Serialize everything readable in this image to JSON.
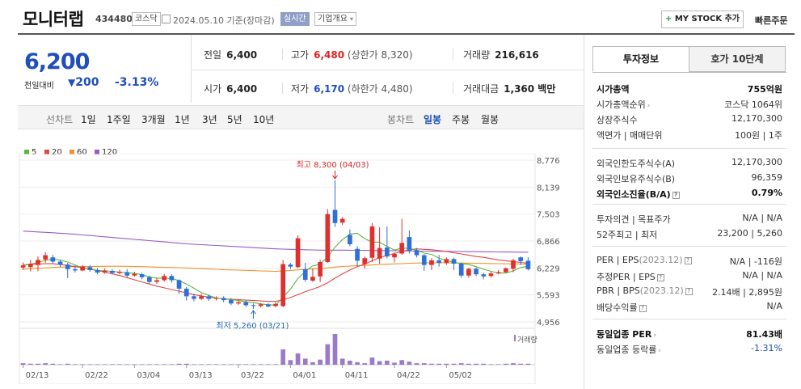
{
  "header": {
    "name": "모니터랩",
    "code": "434480",
    "market_badge": "코스닥",
    "date": "2024.05.10 기준(장마감)",
    "live_badge": "실시간",
    "overview_btn": "기업개요",
    "mystock_btn": "MY STOCK 추가",
    "quick_order": "빠른주문"
  },
  "price": {
    "current": "6,200",
    "change_label": "전일대비",
    "change": "200",
    "change_pct": "-3.13%"
  },
  "quotes": {
    "prev_label": "전일",
    "prev": "6,400",
    "high_label": "고가",
    "high": "6,480",
    "high_sub": "(상한가 8,320)",
    "volume_label": "거래량",
    "volume": "216,616",
    "open_label": "시가",
    "open": "6,400",
    "low_label": "저가",
    "low": "6,170",
    "low_sub": "(하한가 4,480)",
    "amount_label": "거래대금",
    "amount": "1,360 백만"
  },
  "toolbar": {
    "line_label": "선차트",
    "periods": [
      "1일",
      "1주일",
      "3개월",
      "1년",
      "3년",
      "5년",
      "10년"
    ],
    "candle_label": "봉차트",
    "candles": [
      "일봉",
      "주봉",
      "월봉"
    ]
  },
  "chart_data": {
    "type": "candlestick",
    "x_ticks": [
      "02/13",
      "02/22",
      "03/04",
      "03/13",
      "03/22",
      "04/01",
      "04/11",
      "04/22",
      "05/02"
    ],
    "y_ticks": [
      8776,
      8139,
      7503,
      6866,
      6229,
      5593,
      4956
    ],
    "ylim": [
      4956,
      8776
    ],
    "legend": [
      {
        "name": "5",
        "color": "#5cb83a"
      },
      {
        "name": "20",
        "color": "#e04848"
      },
      {
        "name": "60",
        "color": "#f0922b"
      },
      {
        "name": "120",
        "color": "#9b59c6"
      }
    ],
    "volume_label": "거래량",
    "annotations": {
      "high": "최고 8,300 (04/03)",
      "low": "최저 5,260 (03/21)"
    },
    "candles": [
      {
        "o": 6240,
        "c": 6290,
        "h": 6360,
        "l": 6180
      },
      {
        "o": 6250,
        "c": 6330,
        "h": 6420,
        "l": 6150
      },
      {
        "o": 6300,
        "c": 6420,
        "h": 6500,
        "l": 6150
      },
      {
        "o": 6430,
        "c": 6530,
        "h": 6600,
        "l": 6350
      },
      {
        "o": 6480,
        "c": 6380,
        "h": 6540,
        "l": 6340
      },
      {
        "o": 6380,
        "c": 6310,
        "h": 6420,
        "l": 6250
      },
      {
        "o": 6310,
        "c": 6200,
        "h": 6350,
        "l": 5990
      },
      {
        "o": 6200,
        "c": 6170,
        "h": 6290,
        "l": 6120
      },
      {
        "o": 6170,
        "c": 6260,
        "h": 6300,
        "l": 6150
      },
      {
        "o": 6250,
        "c": 6180,
        "h": 6300,
        "l": 6140
      },
      {
        "o": 6180,
        "c": 6120,
        "h": 6230,
        "l": 6080
      },
      {
        "o": 6120,
        "c": 6170,
        "h": 6220,
        "l": 6090
      },
      {
        "o": 6160,
        "c": 6110,
        "h": 6200,
        "l": 6080
      },
      {
        "o": 6110,
        "c": 6140,
        "h": 6190,
        "l": 6080
      },
      {
        "o": 6130,
        "c": 6050,
        "h": 6200,
        "l": 6000
      },
      {
        "o": 6050,
        "c": 6090,
        "h": 6140,
        "l": 6020
      },
      {
        "o": 6080,
        "c": 6010,
        "h": 6120,
        "l": 5960
      },
      {
        "o": 6010,
        "c": 5900,
        "h": 6050,
        "l": 5860
      },
      {
        "o": 5900,
        "c": 5940,
        "h": 6000,
        "l": 5850
      },
      {
        "o": 5940,
        "c": 6040,
        "h": 6090,
        "l": 5910
      },
      {
        "o": 6040,
        "c": 5940,
        "h": 6080,
        "l": 5880
      },
      {
        "o": 5940,
        "c": 5740,
        "h": 5960,
        "l": 5620
      },
      {
        "o": 5740,
        "c": 5560,
        "h": 5780,
        "l": 5460
      },
      {
        "o": 5560,
        "c": 5500,
        "h": 5620,
        "l": 5440
      },
      {
        "o": 5500,
        "c": 5560,
        "h": 5620,
        "l": 5470
      },
      {
        "o": 5560,
        "c": 5500,
        "h": 5600,
        "l": 5450
      },
      {
        "o": 5500,
        "c": 5520,
        "h": 5560,
        "l": 5460
      },
      {
        "o": 5520,
        "c": 5470,
        "h": 5560,
        "l": 5420
      },
      {
        "o": 5470,
        "c": 5390,
        "h": 5520,
        "l": 5350
      },
      {
        "o": 5390,
        "c": 5420,
        "h": 5460,
        "l": 5360
      },
      {
        "o": 5420,
        "c": 5350,
        "h": 5460,
        "l": 5310
      },
      {
        "o": 5350,
        "c": 5330,
        "h": 5390,
        "l": 5260
      },
      {
        "o": 5330,
        "c": 5370,
        "h": 5400,
        "l": 5300
      },
      {
        "o": 5370,
        "c": 5320,
        "h": 5400,
        "l": 5300
      },
      {
        "o": 5330,
        "c": 5380,
        "h": 5420,
        "l": 5300
      },
      {
        "o": 5330,
        "c": 6320,
        "h": 6420,
        "l": 5300
      },
      {
        "o": 6310,
        "c": 6260,
        "h": 6350,
        "l": 6200
      },
      {
        "o": 6250,
        "c": 6930,
        "h": 7000,
        "l": 6230
      },
      {
        "o": 6200,
        "c": 5950,
        "h": 6350,
        "l": 5900
      },
      {
        "o": 5930,
        "c": 6020,
        "h": 6220,
        "l": 5900
      },
      {
        "o": 6030,
        "c": 6370,
        "h": 6420,
        "l": 5900
      },
      {
        "o": 6370,
        "c": 7500,
        "h": 7620,
        "l": 6350
      },
      {
        "o": 7600,
        "c": 7290,
        "h": 8300,
        "l": 7200
      },
      {
        "o": 7300,
        "c": 7390,
        "h": 7430,
        "l": 7240
      },
      {
        "o": 7010,
        "c": 6790,
        "h": 7140,
        "l": 6740
      },
      {
        "o": 6680,
        "c": 6400,
        "h": 6740,
        "l": 6270
      },
      {
        "o": 6320,
        "c": 6460,
        "h": 6500,
        "l": 6210
      },
      {
        "o": 6470,
        "c": 7210,
        "h": 7290,
        "l": 6370
      },
      {
        "o": 6450,
        "c": 6700,
        "h": 7190,
        "l": 6330
      },
      {
        "o": 6710,
        "c": 6500,
        "h": 7210,
        "l": 6460
      },
      {
        "o": 6480,
        "c": 6560,
        "h": 6600,
        "l": 6360
      },
      {
        "o": 6570,
        "c": 6820,
        "h": 7390,
        "l": 6540
      },
      {
        "o": 6960,
        "c": 6640,
        "h": 7120,
        "l": 6570
      },
      {
        "o": 6650,
        "c": 6530,
        "h": 6700,
        "l": 6480
      },
      {
        "o": 6530,
        "c": 6300,
        "h": 6560,
        "l": 6160
      },
      {
        "o": 6300,
        "c": 6410,
        "h": 6460,
        "l": 6180
      },
      {
        "o": 6410,
        "c": 6350,
        "h": 6540,
        "l": 6260
      },
      {
        "o": 6350,
        "c": 6440,
        "h": 6480,
        "l": 6300
      },
      {
        "o": 6440,
        "c": 6330,
        "h": 6470,
        "l": 6180
      },
      {
        "o": 6330,
        "c": 6050,
        "h": 6360,
        "l": 6000
      },
      {
        "o": 6050,
        "c": 6210,
        "h": 6230,
        "l": 6000
      },
      {
        "o": 6210,
        "c": 6080,
        "h": 6240,
        "l": 6040
      },
      {
        "o": 6080,
        "c": 6030,
        "h": 6120,
        "l": 5960
      },
      {
        "o": 6040,
        "c": 6100,
        "h": 6140,
        "l": 6000
      },
      {
        "o": 6100,
        "c": 6130,
        "h": 6180,
        "l": 6080
      },
      {
        "o": 6130,
        "c": 6220,
        "h": 6240,
        "l": 6110
      },
      {
        "o": 6210,
        "c": 6410,
        "h": 6450,
        "l": 6130
      },
      {
        "o": 6480,
        "c": 6390,
        "h": 6500,
        "l": 6300
      },
      {
        "o": 6400,
        "c": 6200,
        "h": 6480,
        "l": 6170
      }
    ],
    "volume": [
      3,
      2,
      2,
      3,
      2,
      1,
      2,
      1,
      1,
      1,
      1,
      1,
      1,
      1,
      1,
      1,
      1,
      1,
      1,
      1,
      1,
      2,
      2,
      1,
      1,
      1,
      1,
      1,
      1,
      1,
      1,
      1,
      1,
      1,
      1,
      30,
      9,
      22,
      12,
      5,
      10,
      40,
      60,
      12,
      8,
      5,
      3,
      14,
      7,
      8,
      4,
      9,
      6,
      3,
      3,
      2,
      2,
      2,
      2,
      3,
      2,
      2,
      2,
      1,
      1,
      2,
      3,
      2,
      2
    ],
    "ma": {
      "5": [
        6290,
        6320,
        6360,
        6410,
        6440,
        6420,
        6370,
        6300,
        6230,
        6210,
        6170,
        6160,
        6150,
        6130,
        6120,
        6100,
        6070,
        6020,
        5990,
        5990,
        5980,
        5930,
        5850,
        5750,
        5650,
        5580,
        5520,
        5500,
        5480,
        5460,
        5430,
        5410,
        5380,
        5360,
        5350,
        5540,
        5730,
        5980,
        6150,
        6280,
        6320,
        6490,
        6720,
        6900,
        7030,
        7050,
        6920,
        6840,
        6840,
        6740,
        6650,
        6700,
        6690,
        6650,
        6580,
        6550,
        6460,
        6400,
        6370,
        6330,
        6310,
        6260,
        6200,
        6150,
        6110,
        6110,
        6160,
        6240,
        6270
      ],
      "20": [
        6300,
        6310,
        6320,
        6330,
        6330,
        6310,
        6290,
        6260,
        6240,
        6200,
        6170,
        6130,
        6090,
        6050,
        6000,
        5950,
        5900,
        5850,
        5800,
        5760,
        5720,
        5680,
        5640,
        5600,
        5570,
        5540,
        5520,
        5500,
        5490,
        5480,
        5470,
        5460,
        5450,
        5440,
        5440,
        5480,
        5530,
        5600,
        5670,
        5730,
        5790,
        5880,
        5990,
        6090,
        6180,
        6260,
        6320,
        6400,
        6470,
        6530,
        6570,
        6620,
        6660,
        6680,
        6670,
        6660,
        6640,
        6620,
        6590,
        6560,
        6530,
        6500,
        6480,
        6450,
        6420,
        6400,
        6380,
        6360,
        6340
      ],
      "60": [
        6200,
        6210,
        6220,
        6230,
        6240,
        6250,
        6255,
        6260,
        6262,
        6264,
        6266,
        6268,
        6270,
        6270,
        6268,
        6265,
        6260,
        6255,
        6250,
        6245,
        6240,
        6235,
        6228,
        6220,
        6212,
        6205,
        6198,
        6190,
        6184,
        6178,
        6172,
        6166,
        6160,
        6155,
        6150,
        6160,
        6170,
        6185,
        6195,
        6205,
        6215,
        6230,
        6250,
        6265,
        6275,
        6285,
        6290,
        6300,
        6310,
        6318,
        6325,
        6332,
        6340,
        6345,
        6348,
        6350,
        6350,
        6350,
        6348,
        6345,
        6342,
        6340,
        6337,
        6334,
        6331,
        6328,
        6325,
        6322,
        6320
      ],
      "120": [
        7100,
        7090,
        7080,
        7070,
        7060,
        7050,
        7040,
        7025,
        7010,
        6995,
        6980,
        6965,
        6950,
        6935,
        6920,
        6905,
        6890,
        6875,
        6860,
        6845,
        6830,
        6815,
        6800,
        6790,
        6780,
        6770,
        6760,
        6750,
        6740,
        6730,
        6720,
        6710,
        6700,
        6690,
        6680,
        6675,
        6670,
        6665,
        6660,
        6655,
        6650,
        6650,
        6650,
        6650,
        6648,
        6646,
        6644,
        6642,
        6640,
        6638,
        6636,
        6634,
        6632,
        6630,
        6628,
        6626,
        6624,
        6622,
        6620,
        6618,
        6616,
        6614,
        6612,
        6610,
        6608,
        6606,
        6604,
        6602,
        6600
      ]
    }
  },
  "side": {
    "tab_info": "투자정보",
    "tab_quote": "호가 10단계",
    "rows1": [
      {
        "k": "시가총액",
        "v": "755억원",
        "bold": true
      },
      {
        "k": "시가총액순위",
        "v": "코스닥 1064위",
        "arrow": true
      },
      {
        "k": "상장주식수",
        "v": "12,170,300"
      },
      {
        "k": "액면가 | 매매단위",
        "v": "100원 | 1주"
      }
    ],
    "rows2": [
      {
        "k": "외국인한도주식수(A)",
        "v": "12,170,300"
      },
      {
        "k": "외국인보유주식수(B)",
        "v": "96,359"
      },
      {
        "k": "외국인소진율(B/A)",
        "v": "0.79%",
        "bold": true,
        "q": true
      }
    ],
    "rows3": [
      {
        "k": "투자의견 | 목표주가",
        "v": "N/A | N/A"
      },
      {
        "k": "52주최고 | 최저",
        "v": "23,200 | 5,260"
      }
    ],
    "rows4": [
      {
        "k": "PER | EPS",
        "k2": "(2023.12)",
        "v": "N/A | -116원",
        "q": true
      },
      {
        "k": "추정PER | EPS",
        "v": "N/A | N/A",
        "q": true
      },
      {
        "k": "PBR | BPS",
        "k2": "(2023.12)",
        "v": "2.14배 | 2,895원",
        "q": true
      },
      {
        "k": "배당수익률",
        "v": "N/A",
        "q": true
      }
    ],
    "rows5": [
      {
        "k": "동일업종 PER",
        "v": "81.43배",
        "bold": true,
        "arrow": true
      },
      {
        "k": "동일업종 등락률",
        "v": "-1.31%",
        "arrow": true,
        "neg": true
      }
    ]
  }
}
